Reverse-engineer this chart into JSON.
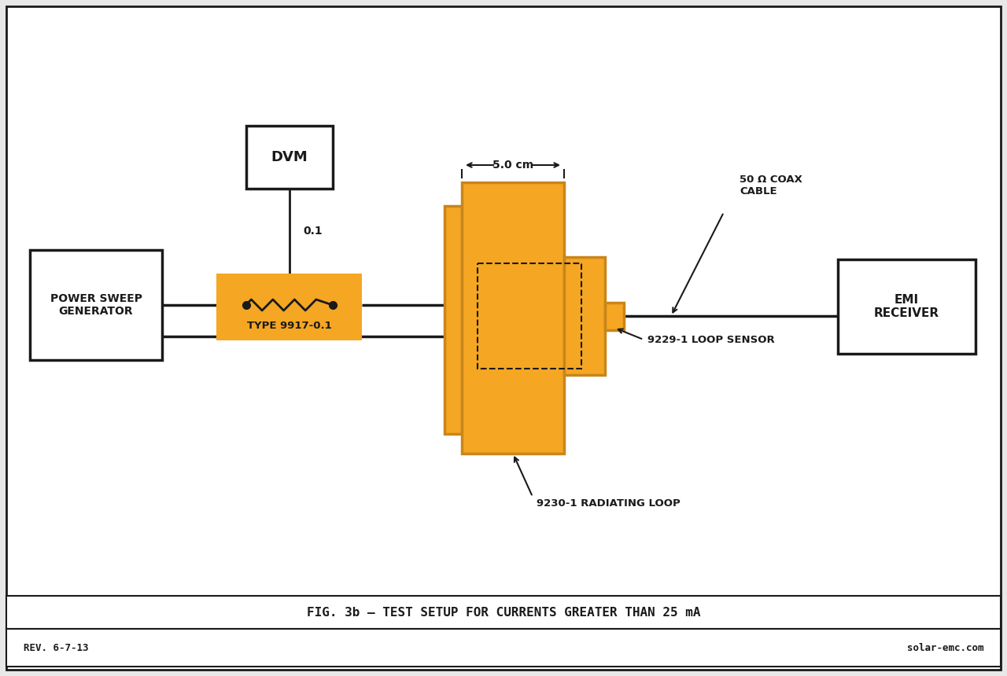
{
  "bg_color": "#e8e8e8",
  "diagram_bg": "#ffffff",
  "gold_color": "#F5A623",
  "gold_dark": "#C8861A",
  "line_color": "#1a1a1a",
  "title_caption": "FIG. 3b – TEST SETUP FOR CURRENTS GREATER THAN 25 mA",
  "rev_text": "REV. 6-7-13",
  "website_text": "solar-emc.com",
  "dvm_label": "DVM",
  "resistor_label": "TYPE 9917-0.1",
  "resistor_value": "0.1",
  "power_sweep_label": "POWER SWEEP\nGENERATOR",
  "emi_label": "EMI\nRECEIVER",
  "distance_label": "5.0 cm",
  "coax_label": "50 Ω COAX\nCABLE",
  "loop_sensor_label": "9229-1 LOOP SENSOR",
  "radiating_loop_label": "9230-1 RADIATING LOOP"
}
